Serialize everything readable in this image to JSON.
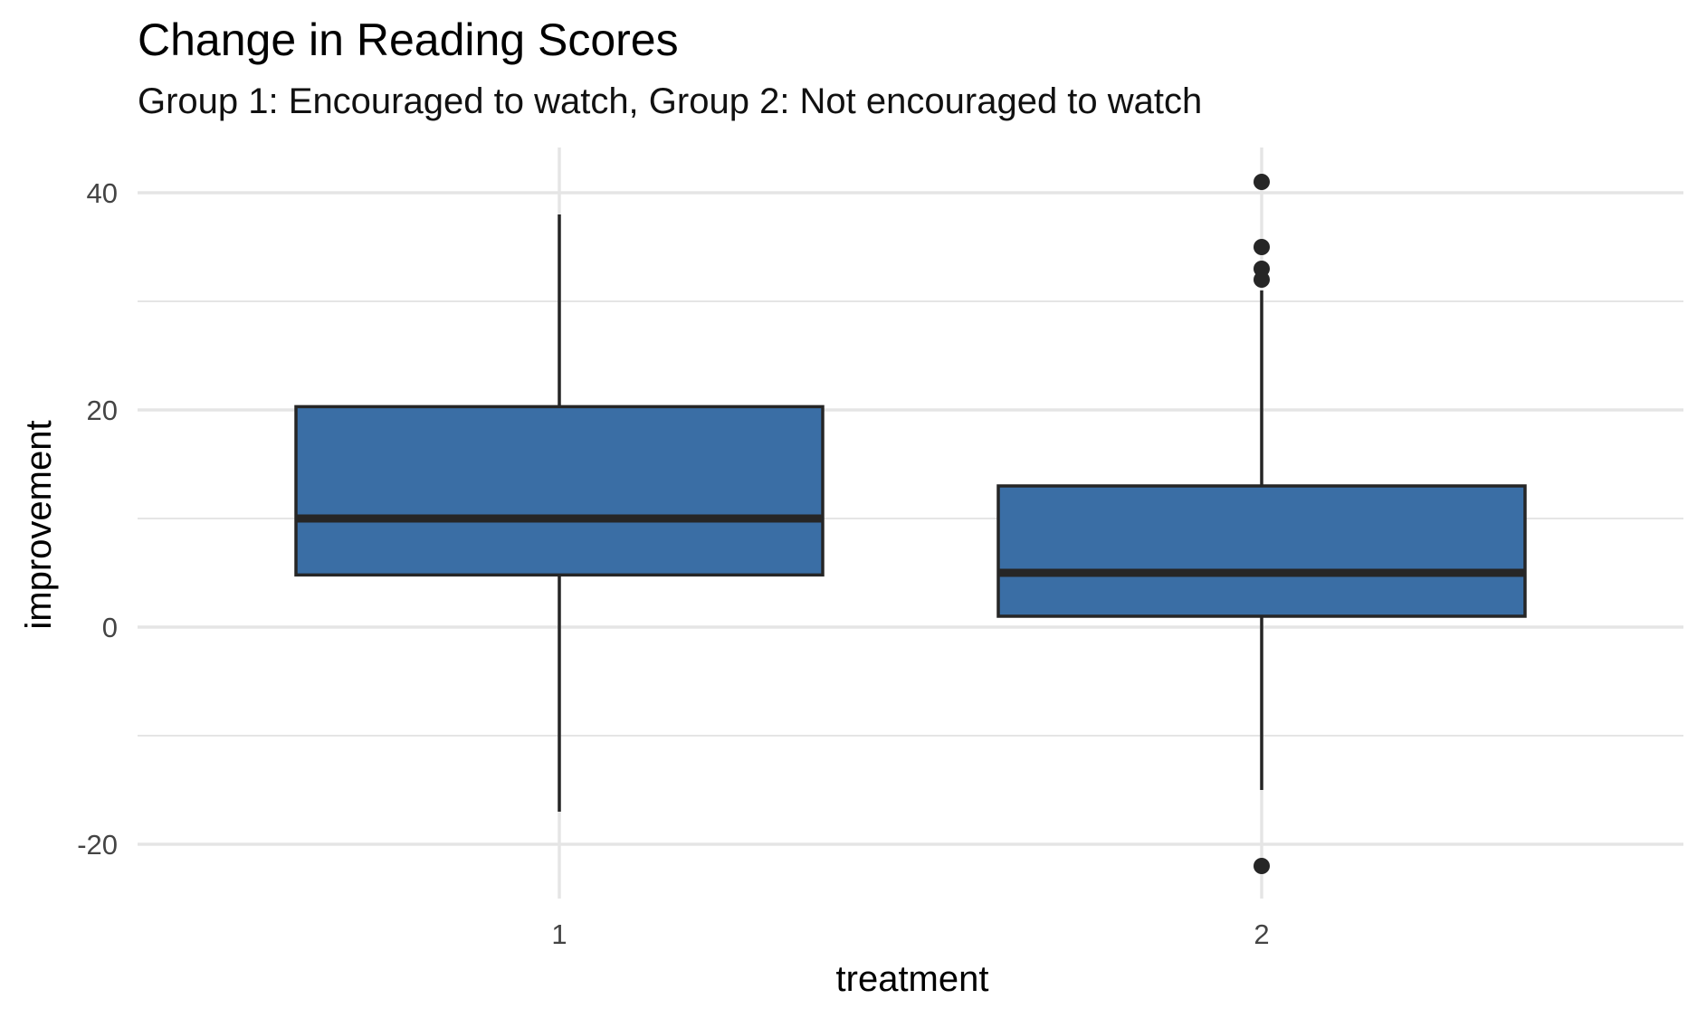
{
  "chart_data": {
    "type": "box",
    "title": "Change in Reading Scores",
    "subtitle": "Group 1: Encouraged to watch, Group 2: Not encouraged to watch",
    "xlabel": "treatment",
    "ylabel": "improvement",
    "categories": [
      "1",
      "2"
    ],
    "yticks": [
      -20,
      0,
      20,
      40
    ],
    "ylim": [
      -24,
      44
    ],
    "grid": true,
    "box_color": "#3A6EA5",
    "line_color": "#262626",
    "grid_color": "#E5E5E5",
    "boxes": [
      {
        "category": "1",
        "whisker_low": -17,
        "q1": 4.8,
        "median": 10,
        "q3": 20.3,
        "whisker_high": 38,
        "outliers": []
      },
      {
        "category": "2",
        "whisker_low": -15,
        "q1": 1,
        "median": 5,
        "q3": 13,
        "whisker_high": 31,
        "outliers": [
          41,
          35,
          33,
          32,
          -22
        ]
      }
    ]
  }
}
